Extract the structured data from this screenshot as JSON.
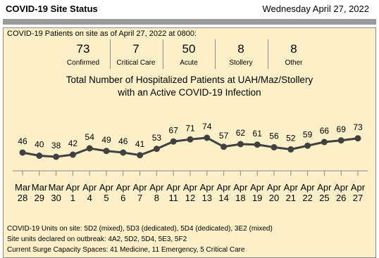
{
  "header": {
    "title": "COVID-19 Site Status",
    "date": "Wednesday April 27, 2022"
  },
  "summary": {
    "heading": "COVID-19 Patients on site as of April 27, 2022 at 0800:",
    "stats": [
      {
        "value": "73",
        "label": "Confirmed"
      },
      {
        "value": "7",
        "label": "Critical Care"
      },
      {
        "value": "50",
        "label": "Acute"
      },
      {
        "value": "8",
        "label": "Stollery"
      },
      {
        "value": "8",
        "label": "Other"
      }
    ]
  },
  "chart_data": {
    "type": "line",
    "title": "Total Number of Hospitalized Patients at UAH/Maz/Stollery",
    "subtitle": "with an Active COVID-19 Infection",
    "categories": [
      "Mar 28",
      "Mar 29",
      "Mar 30",
      "Apr 1",
      "Apr 4",
      "Apr 5",
      "Apr 6",
      "Apr 7",
      "Apr 8",
      "Apr 11",
      "Apr 12",
      "Apr 13",
      "Apr 14",
      "Apr 18",
      "Apr 19",
      "Apr 20",
      "Apr 21",
      "Apr 22",
      "Apr 25",
      "Apr 26",
      "Apr 27"
    ],
    "values": [
      46,
      40,
      38,
      42,
      54,
      49,
      46,
      41,
      53,
      67,
      71,
      74,
      57,
      62,
      61,
      56,
      52,
      59,
      66,
      69,
      73
    ],
    "color": "#404040",
    "ylim": [
      0,
      100
    ]
  },
  "footer": [
    "COVID-19 Units on site: 5D2 (mixed), 5D3 (dedicated), 5D4 (dedicated), 3E2 (mixed)",
    "Site units declared on outbreak: 4A2, 5D2, 5D4, 5E3, 5F2",
    "Current Surge Capacity Spaces: 41 Medicine, 11 Emergency, 5 Critical Care"
  ]
}
